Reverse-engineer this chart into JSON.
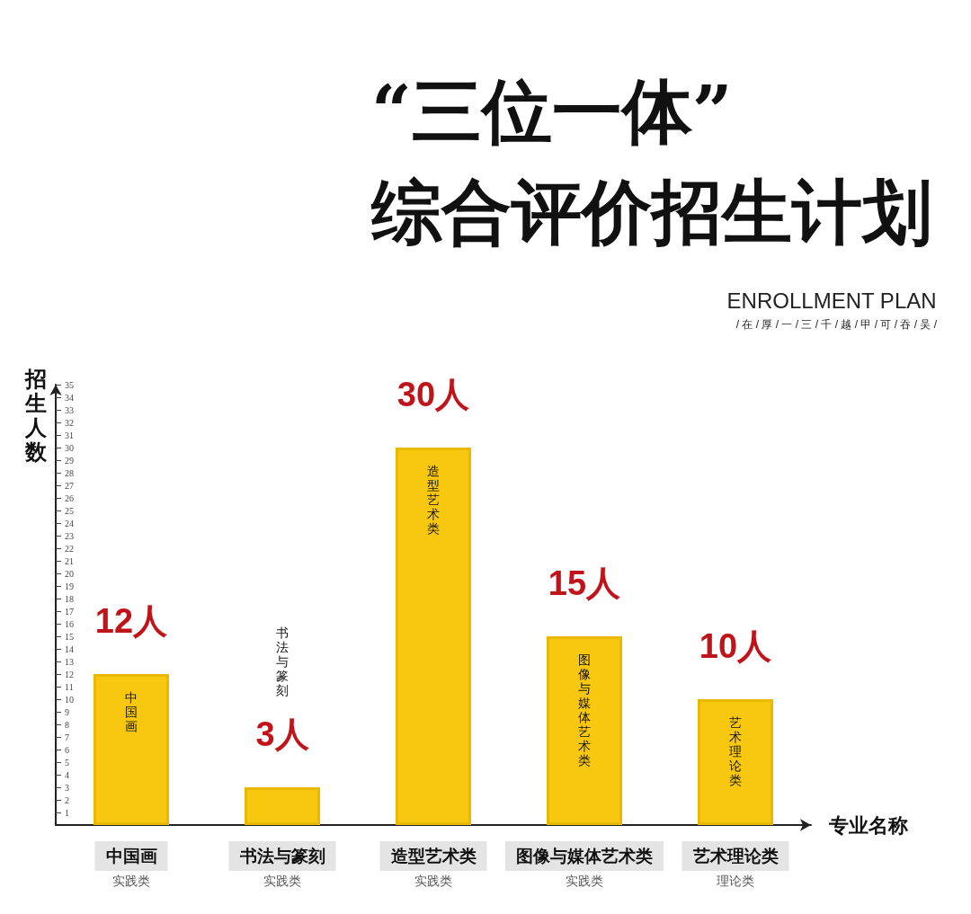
{
  "chart_data": {
    "type": "bar",
    "title": "“三位一体”\n综合评价招生计划",
    "xlabel": "专业名称",
    "ylabel": "招生人数",
    "categories": [
      "中国画",
      "书法与篆刻",
      "造型艺术类",
      "图像与媒体艺术类",
      "艺术理论类"
    ],
    "values": [
      12,
      3,
      30,
      15,
      10
    ],
    "color": "#f7c80f",
    "value_labels": [
      "12人",
      "3人",
      "30人",
      "15人",
      "10人"
    ],
    "ylim": [
      0,
      35
    ],
    "yticks": [
      1,
      2,
      3,
      4,
      5,
      6,
      7,
      8,
      9,
      10,
      11,
      12,
      13,
      14,
      15,
      16,
      17,
      18,
      19,
      20,
      21,
      22,
      23,
      24,
      25,
      26,
      27,
      28,
      29,
      30,
      31,
      32,
      33,
      34,
      35
    ],
    "grid": false,
    "annotations": [
      "ENROLLMENT PLAN",
      "/ 在 / 厚 / 一 / 三 / 千 / 越 / 甲 / 可 / 吞 / 吴 /",
      "中国画",
      "书法与篆刻",
      "造型艺术类",
      "图像与媒体艺术类",
      "艺术理论类",
      "实践类",
      "实践类",
      "实践类",
      "实践类",
      "理论类"
    ]
  }
}
